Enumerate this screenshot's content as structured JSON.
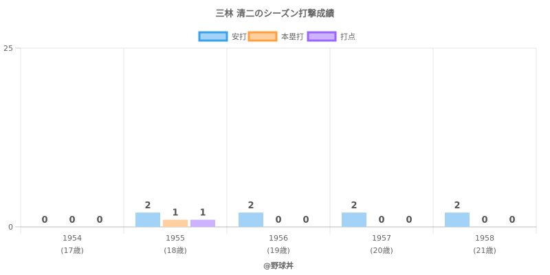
{
  "chart_data": {
    "type": "bar",
    "title": "三林 清二のシーズン打撃成績",
    "categories": [
      "1954",
      "1955",
      "1956",
      "1957",
      "1958"
    ],
    "category_sublabels": [
      "(17歳)",
      "(18歳)",
      "(19歳)",
      "(20歳)",
      "(21歳)"
    ],
    "series": [
      {
        "name": "安打",
        "values": [
          0,
          2,
          2,
          2,
          2
        ],
        "color": "#a2d2f5",
        "border": "#36a2eb"
      },
      {
        "name": "本塁打",
        "values": [
          0,
          1,
          0,
          0,
          0
        ],
        "color": "#ffcf9f",
        "border": "#ff9f40"
      },
      {
        "name": "打点",
        "values": [
          0,
          1,
          0,
          0,
          0
        ],
        "color": "#ccb2ff",
        "border": "#9966ff"
      }
    ],
    "ylim": [
      0,
      25
    ],
    "yticks": [
      "0",
      "25"
    ],
    "legend": "top",
    "grid": true,
    "credit": "@野球丼"
  }
}
